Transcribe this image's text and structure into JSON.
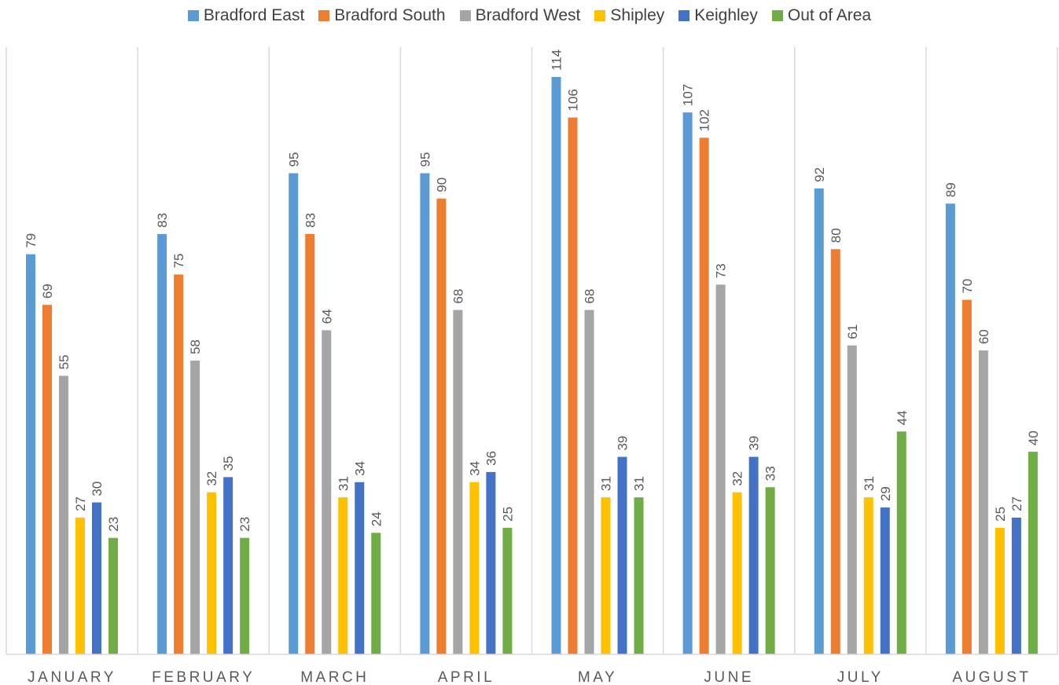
{
  "chart_data": {
    "type": "bar",
    "categories": [
      "JANUARY",
      "FEBRUARY",
      "MARCH",
      "APRIL",
      "MAY",
      "JUNE",
      "JULY",
      "AUGUST"
    ],
    "series": [
      {
        "name": "Bradford East",
        "color": "#5B9BD5",
        "values": [
          79,
          83,
          95,
          95,
          114,
          107,
          92,
          89
        ]
      },
      {
        "name": "Bradford South",
        "color": "#ED7D31",
        "values": [
          69,
          75,
          83,
          90,
          106,
          102,
          80,
          70
        ]
      },
      {
        "name": "Bradford West",
        "color": "#A5A5A5",
        "values": [
          55,
          58,
          64,
          68,
          68,
          73,
          61,
          60
        ]
      },
      {
        "name": "Shipley",
        "color": "#FFC000",
        "values": [
          27,
          32,
          31,
          34,
          31,
          32,
          31,
          25
        ]
      },
      {
        "name": "Keighley",
        "color": "#4472C4",
        "values": [
          30,
          35,
          34,
          36,
          39,
          39,
          29,
          27
        ]
      },
      {
        "name": "Out of Area",
        "color": "#70AD47",
        "values": [
          23,
          23,
          24,
          25,
          31,
          33,
          44,
          40
        ]
      }
    ],
    "title": "",
    "xlabel": "",
    "ylabel": "",
    "ylim": [
      0,
      120
    ],
    "grid": false,
    "legend_position": "top",
    "data_labels": true,
    "data_label_color": "#595959",
    "axis_color": "#D9D9D9",
    "category_label_color": "#595959"
  }
}
